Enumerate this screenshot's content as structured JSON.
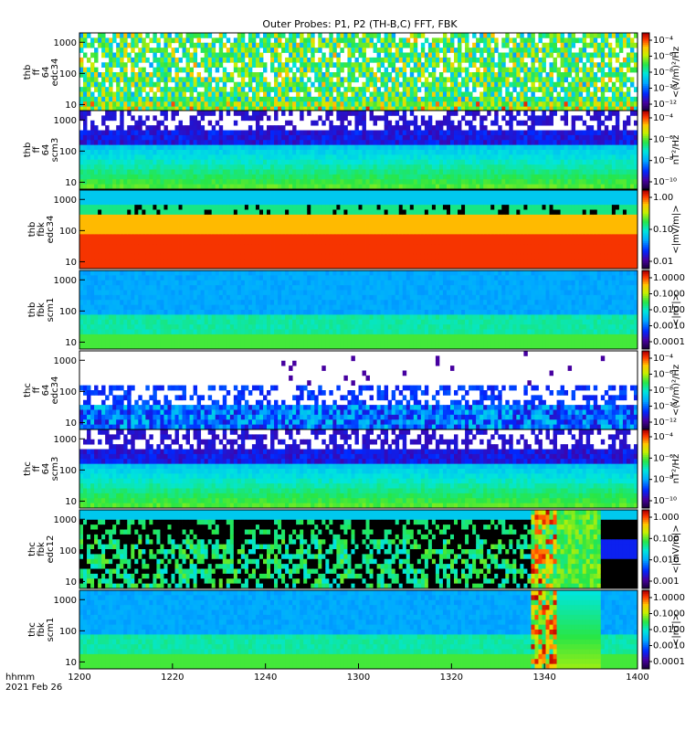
{
  "chart_data": {
    "type": "heatmap",
    "title": "Outer Probes: P1, P2 (TH-B,C) FFT, FBK",
    "x_ticks": [
      "1200",
      "1220",
      "1240",
      "1300",
      "1320",
      "1340",
      "1400"
    ],
    "x_corner": [
      "hhmm",
      "2021 Feb 26"
    ],
    "grid": false,
    "panels": [
      {
        "probe": "thb",
        "ylabel": [
          "thb",
          "ff",
          "64",
          "edc34"
        ],
        "y_ticks": [
          "10",
          "100",
          "1000"
        ],
        "yscale": "log",
        "cbar_label": "<(V/m)²/Hz",
        "cbar_ticks": [
          "10⁻⁴",
          "10⁻⁶",
          "10⁻⁸",
          "10⁻¹⁰",
          "10⁻¹²"
        ],
        "pattern": "spiky"
      },
      {
        "probe": "thb",
        "ylabel": [
          "thb",
          "ff",
          "64",
          "scm3"
        ],
        "y_ticks": [
          "10",
          "100",
          "1000"
        ],
        "yscale": "log",
        "cbar_label": "nT²/Hz",
        "cbar_ticks": [
          "10⁻⁴",
          "10⁻⁶",
          "10⁻⁸",
          "10⁻¹⁰"
        ],
        "pattern": "banded_scm"
      },
      {
        "probe": "thb",
        "ylabel": [
          "thb",
          "fbk",
          "edc34"
        ],
        "y_ticks": [
          "10",
          "100",
          "1000"
        ],
        "yscale": "log",
        "cbar_label": "<|mV/m|>",
        "cbar_ticks": [
          "1.00",
          "0.10",
          "0.01"
        ],
        "pattern": "fbk_edc_b"
      },
      {
        "probe": "thb",
        "ylabel": [
          "thb",
          "fbk",
          "scm1"
        ],
        "y_ticks": [
          "10",
          "100",
          "1000"
        ],
        "yscale": "log",
        "cbar_label": "<|nT|>",
        "cbar_ticks": [
          "1.0000",
          "0.1000",
          "0.0100",
          "0.0010",
          "0.0001"
        ],
        "pattern": "fbk_scm_b"
      },
      {
        "probe": "thc",
        "ylabel": [
          "thc",
          "ff",
          "64",
          "edc34"
        ],
        "y_ticks": [
          "10",
          "100",
          "1000"
        ],
        "yscale": "log",
        "cbar_label": "<(V/m)²/Hz",
        "cbar_ticks": [
          "10⁻⁴",
          "10⁻⁶",
          "10⁻⁸",
          "10⁻¹⁰",
          "10⁻¹²"
        ],
        "pattern": "sparse"
      },
      {
        "probe": "thc",
        "ylabel": [
          "thc",
          "ff",
          "64",
          "scm3"
        ],
        "y_ticks": [
          "10",
          "100",
          "1000"
        ],
        "yscale": "log",
        "cbar_label": "nT²/Hz",
        "cbar_ticks": [
          "10⁻⁴",
          "10⁻⁶",
          "10⁻⁸",
          "10⁻¹⁰"
        ],
        "pattern": "banded_scm"
      },
      {
        "probe": "thc",
        "ylabel": [
          "thc",
          "fbk",
          "edc12"
        ],
        "y_ticks": [
          "10",
          "100",
          "1000"
        ],
        "yscale": "log",
        "cbar_label": "<|mV/m|>",
        "cbar_ticks": [
          "1.000",
          "0.100",
          "0.010",
          "0.001"
        ],
        "pattern": "fbk_edc_c"
      },
      {
        "probe": "thc",
        "ylabel": [
          "thc",
          "fbk",
          "scm1"
        ],
        "y_ticks": [
          "10",
          "100",
          "1000"
        ],
        "yscale": "log",
        "cbar_label": "<|nT|>",
        "cbar_ticks": [
          "1.0000",
          "0.1000",
          "0.0100",
          "0.0010",
          "0.0001"
        ],
        "pattern": "fbk_scm_c"
      }
    ]
  }
}
